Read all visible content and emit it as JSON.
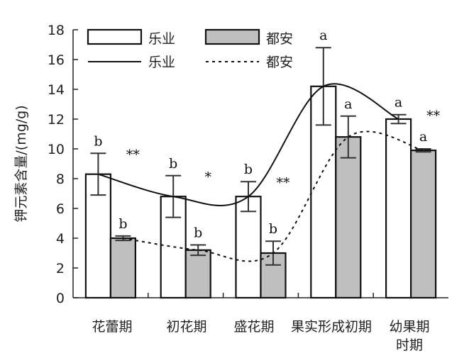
{
  "chart_data": {
    "type": "bar",
    "ylabel": "钾元素含量/(mg/g)",
    "ylim": [
      0,
      18
    ],
    "yticks": [
      0,
      2,
      4,
      6,
      8,
      10,
      12,
      14,
      16,
      18
    ],
    "categories": [
      [
        "花蕾期"
      ],
      [
        "初花期"
      ],
      [
        "盛花期"
      ],
      [
        "果实形成初期"
      ],
      [
        "幼果期",
        "时期"
      ]
    ],
    "series": [
      {
        "name": "乐业",
        "values": [
          8.3,
          6.8,
          6.8,
          14.2,
          12.0
        ],
        "errors": [
          1.4,
          1.4,
          1.0,
          2.6,
          0.3
        ],
        "letters": [
          "b",
          "b",
          "b",
          "a",
          "a"
        ],
        "fill": "#ffffff"
      },
      {
        "name": "都安",
        "values": [
          4.0,
          3.2,
          3.0,
          10.8,
          9.9
        ],
        "errors": [
          0.15,
          0.35,
          0.8,
          1.4,
          0.1
        ],
        "letters": [
          "b",
          "b",
          "b",
          "a",
          "a"
        ],
        "fill": "#bfbfbf"
      }
    ],
    "significance": [
      "**",
      "*",
      "**",
      "",
      "**"
    ],
    "trend_lines": [
      {
        "name": "乐业",
        "style": "solid"
      },
      {
        "name": "都安",
        "style": "dotted"
      }
    ],
    "legend": {
      "position": "top-left",
      "entries": [
        {
          "label": "乐业",
          "kind": "bar",
          "fill": "#ffffff"
        },
        {
          "label": "都安",
          "kind": "bar",
          "fill": "#bfbfbf"
        },
        {
          "label": "乐业",
          "kind": "line",
          "style": "solid"
        },
        {
          "label": "都安",
          "kind": "line",
          "style": "dotted"
        }
      ]
    },
    "grid": false
  }
}
